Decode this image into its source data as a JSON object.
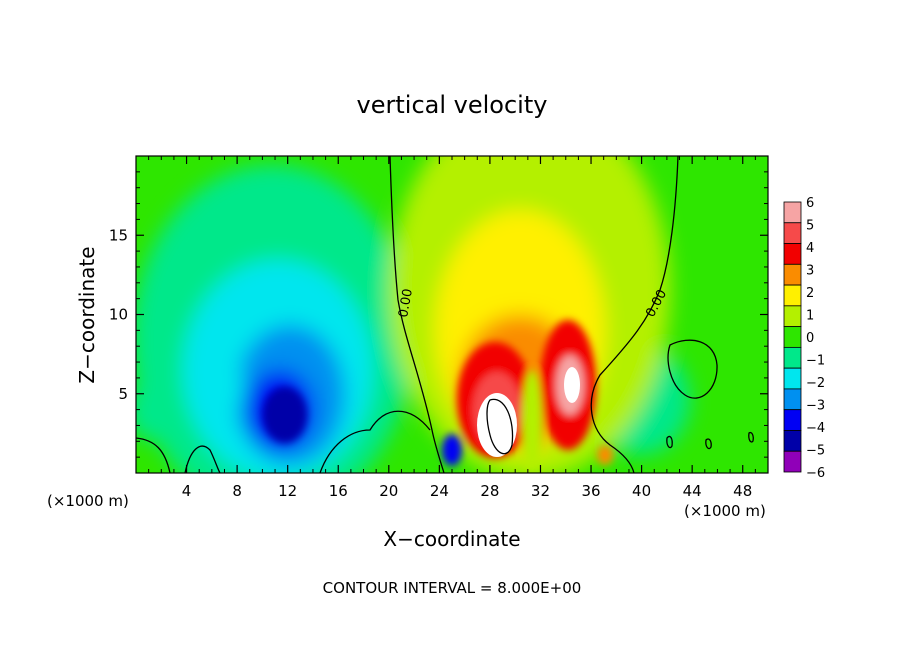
{
  "chart_data": {
    "type": "heatmap",
    "title": "vertical velocity",
    "xlabel": "X−coordinate",
    "ylabel": "Z−coordinate",
    "x_unit_left": "(×1000 m)",
    "x_unit_right": "(×1000 m)",
    "footer": "CONTOUR INTERVAL = 8.000E+00",
    "xlim": [
      0,
      50
    ],
    "ylim": [
      0,
      20
    ],
    "x_ticks": [
      4,
      8,
      12,
      16,
      20,
      24,
      28,
      32,
      36,
      40,
      44,
      48
    ],
    "y_ticks": [
      5,
      10,
      15
    ],
    "contour_labels": [
      "0.00",
      "0.00"
    ],
    "colorbar": {
      "ticks": [
        "6",
        "5",
        "4",
        "3",
        "2",
        "1",
        "0",
        "−1",
        "−2",
        "−3",
        "−4",
        "−5",
        "−6"
      ],
      "levels": [
        {
          "value": 5.5,
          "color": "#f6a4a4"
        },
        {
          "value": 4.5,
          "color": "#f64a4a"
        },
        {
          "value": 3.5,
          "color": "#f20000"
        },
        {
          "value": 2.5,
          "color": "#fa8c00"
        },
        {
          "value": 1.5,
          "color": "#fff000"
        },
        {
          "value": 0.5,
          "color": "#b4f000"
        },
        {
          "value": -0.5,
          "color": "#2ee600"
        },
        {
          "value": -1.5,
          "color": "#00e88a"
        },
        {
          "value": -2.5,
          "color": "#00e6ee"
        },
        {
          "value": -3.5,
          "color": "#0090f0"
        },
        {
          "value": -4.5,
          "color": "#0000f4"
        },
        {
          "value": -5.5,
          "color": "#0000a8"
        },
        {
          "value": -6.5,
          "color": "#9000b8"
        }
      ]
    }
  }
}
